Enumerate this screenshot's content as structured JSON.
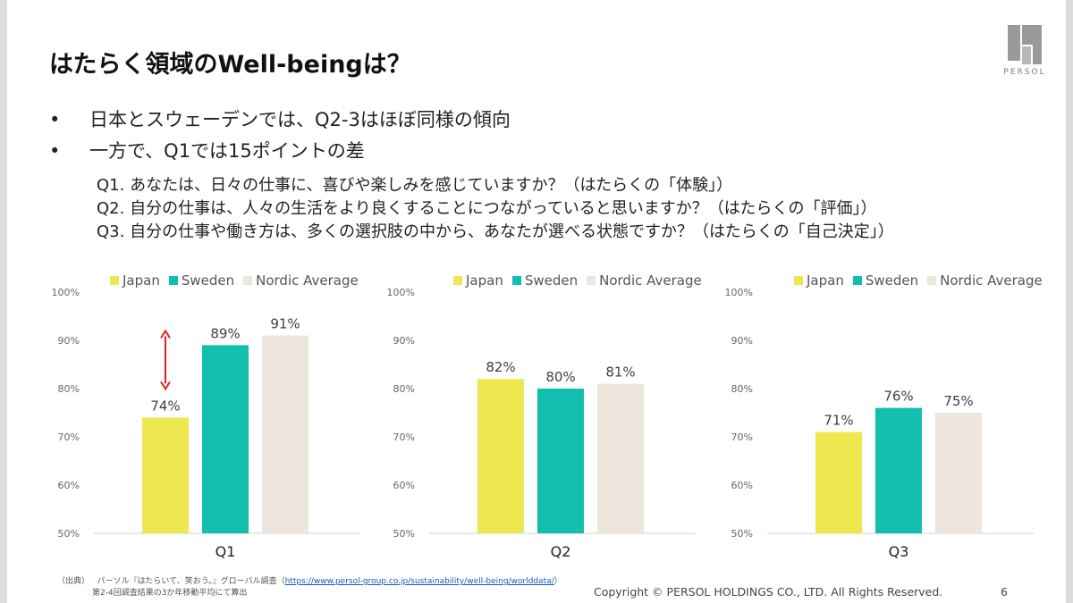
{
  "slide": {
    "title": "はたらく領域のWell-beingは？",
    "logo_text": "PERSOL",
    "bullets": [
      "日本とスウェーデンでは、Q2-3はほぼ同様の傾向",
      "一方で、Q1では15ポイントの差"
    ],
    "bullet_symbol": "•",
    "questions": [
      "Q1. あなたは、日々の仕事に、喜びや楽しみを感じていますか？（はたらくの「体験」）",
      "Q2. 自分の仕事は、人々の生活をより良くすることにつながっていると思いますか？（はたらくの「評価」）",
      "Q3. 自分の仕事や働き方は、多くの選択肢の中から、あなたが選べる状態ですか？（はたらくの「自己決定」）"
    ],
    "source_label": "（出典）",
    "source_text": "パーソル『はたらいて、笑おう。』グローバル調査（",
    "source_url": "https://www.persol-group.co.jp/sustainability/well-being/worlddata/",
    "source_close": "）",
    "source_note": "第2-4回調査結果の3か年移動平均にて算出",
    "copyright": "Copyright © PERSOL HOLDINGS CO., LTD. All Rights Reserved.",
    "page_number": "6"
  },
  "colors": {
    "japan": "#ede84f",
    "sweden": "#12bfae",
    "nordic": "#ede6dc",
    "axis_text": "#666666",
    "arrow": "#e02020"
  },
  "chart_data": [
    {
      "type": "bar",
      "categories": [
        "Q1"
      ],
      "series": [
        {
          "name": "Japan",
          "values": [
            74
          ]
        },
        {
          "name": "Sweden",
          "values": [
            89
          ]
        },
        {
          "name": "Nordic Average",
          "values": [
            91
          ]
        }
      ],
      "data_labels": [
        "74%",
        "89%",
        "91%"
      ],
      "yticks": [
        "50%",
        "60%",
        "70%",
        "80%",
        "90%",
        "100%"
      ],
      "ylim": [
        50,
        100
      ],
      "legend": "top",
      "grid": false,
      "annotation": "double-arrow"
    },
    {
      "type": "bar",
      "categories": [
        "Q2"
      ],
      "series": [
        {
          "name": "Japan",
          "values": [
            82
          ]
        },
        {
          "name": "Sweden",
          "values": [
            80
          ]
        },
        {
          "name": "Nordic Average",
          "values": [
            81
          ]
        }
      ],
      "data_labels": [
        "82%",
        "80%",
        "81%"
      ],
      "yticks": [
        "50%",
        "60%",
        "70%",
        "80%",
        "90%",
        "100%"
      ],
      "ylim": [
        50,
        100
      ],
      "legend": "top",
      "grid": false
    },
    {
      "type": "bar",
      "categories": [
        "Q3"
      ],
      "series": [
        {
          "name": "Japan",
          "values": [
            71
          ]
        },
        {
          "name": "Sweden",
          "values": [
            76
          ]
        },
        {
          "name": "Nordic Average",
          "values": [
            75
          ]
        }
      ],
      "data_labels": [
        "71%",
        "76%",
        "75%"
      ],
      "yticks": [
        "50%",
        "60%",
        "70%",
        "80%",
        "90%",
        "100%"
      ],
      "ylim": [
        50,
        100
      ],
      "legend": "top",
      "grid": false
    }
  ]
}
